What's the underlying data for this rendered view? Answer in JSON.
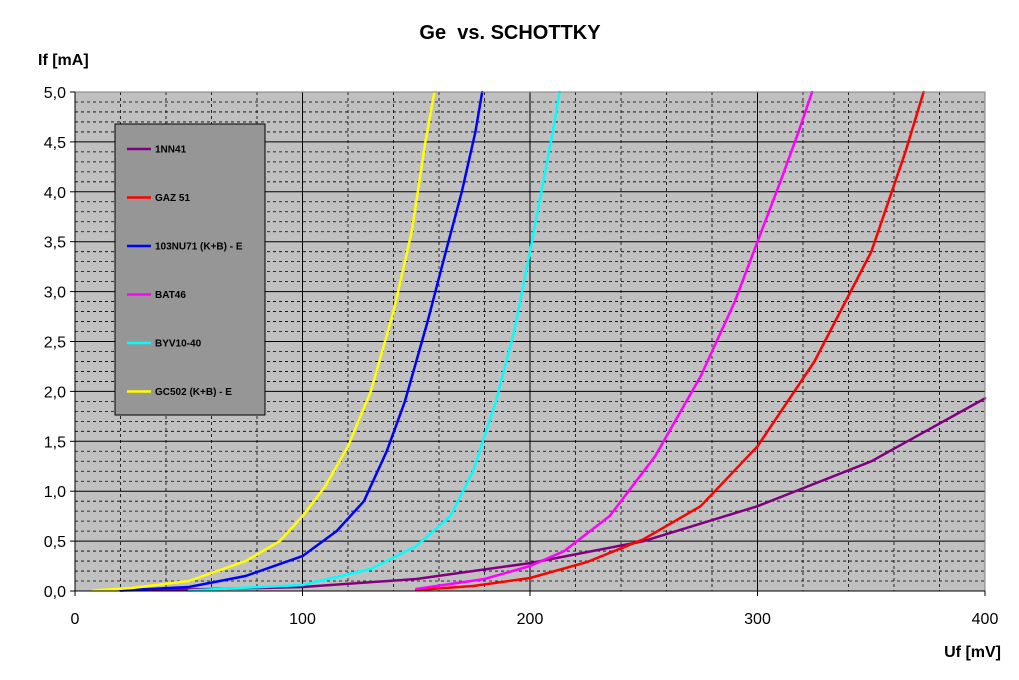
{
  "chart_data": {
    "type": "line",
    "title": "Ge  vs. SCHOTTKY",
    "xlabel": "Uf [mV]",
    "ylabel": "If [mA]",
    "xlim": [
      0,
      400
    ],
    "ylim": [
      0,
      5
    ],
    "x_ticks": [
      0,
      100,
      200,
      300,
      400
    ],
    "x_tick_labels": [
      "0",
      "100",
      "200",
      "300",
      "400"
    ],
    "y_ticks": [
      0,
      0.5,
      1,
      1.5,
      2,
      2.5,
      3,
      3.5,
      4,
      4.5,
      5
    ],
    "y_tick_labels": [
      "0,0",
      "0,5",
      "1,0",
      "1,5",
      "2,0",
      "2,5",
      "3,0",
      "3,5",
      "4,0",
      "4,5",
      "5,0"
    ],
    "grid": {
      "major": true,
      "minor_dashed": true
    },
    "plot_background": "#c0c0c0",
    "legend": {
      "placement": "top-left",
      "background": "#969696"
    },
    "series": [
      {
        "name": "1NN41",
        "color": "#800080",
        "x": [
          20,
          50,
          100,
          150,
          200,
          250,
          300,
          350,
          400
        ],
        "y": [
          0.005,
          0.015,
          0.04,
          0.12,
          0.28,
          0.5,
          0.85,
          1.3,
          1.93
        ]
      },
      {
        "name": "GAZ 51",
        "color": "#ff0000",
        "x": [
          150,
          175,
          200,
          225,
          250,
          275,
          300,
          325,
          350,
          365,
          373
        ],
        "y": [
          0.01,
          0.05,
          0.13,
          0.29,
          0.52,
          0.85,
          1.45,
          2.3,
          3.4,
          4.4,
          5.0
        ]
      },
      {
        "name": "103NU71 (K+B) - E",
        "color": "#0000ff",
        "x": [
          20,
          50,
          75,
          100,
          115,
          127,
          137,
          145,
          155,
          163,
          170,
          176,
          179
        ],
        "y": [
          0.005,
          0.04,
          0.15,
          0.35,
          0.6,
          0.9,
          1.4,
          1.9,
          2.7,
          3.4,
          4.0,
          4.6,
          5.0
        ]
      },
      {
        "name": "BAT46",
        "color": "#ff00ff",
        "x": [
          150,
          180,
          200,
          215,
          235,
          255,
          275,
          290,
          300,
          310,
          318,
          324
        ],
        "y": [
          0.02,
          0.12,
          0.25,
          0.4,
          0.75,
          1.35,
          2.15,
          2.9,
          3.5,
          4.1,
          4.6,
          5.0
        ]
      },
      {
        "name": "BYV10-40",
        "color": "#00ffff",
        "x": [
          50,
          100,
          130,
          150,
          165,
          175,
          185,
          193,
          200,
          205,
          210,
          213
        ],
        "y": [
          0.005,
          0.06,
          0.22,
          0.45,
          0.75,
          1.2,
          1.9,
          2.6,
          3.4,
          4.0,
          4.6,
          5.0
        ]
      },
      {
        "name": "GC502 (K+B) - E",
        "color": "#ffff00",
        "x": [
          8,
          25,
          50,
          75,
          90,
          100,
          110,
          120,
          130,
          140,
          148,
          154,
          158
        ],
        "y": [
          0.005,
          0.03,
          0.1,
          0.3,
          0.5,
          0.75,
          1.05,
          1.45,
          2.0,
          2.8,
          3.6,
          4.5,
          5.0
        ]
      }
    ]
  }
}
